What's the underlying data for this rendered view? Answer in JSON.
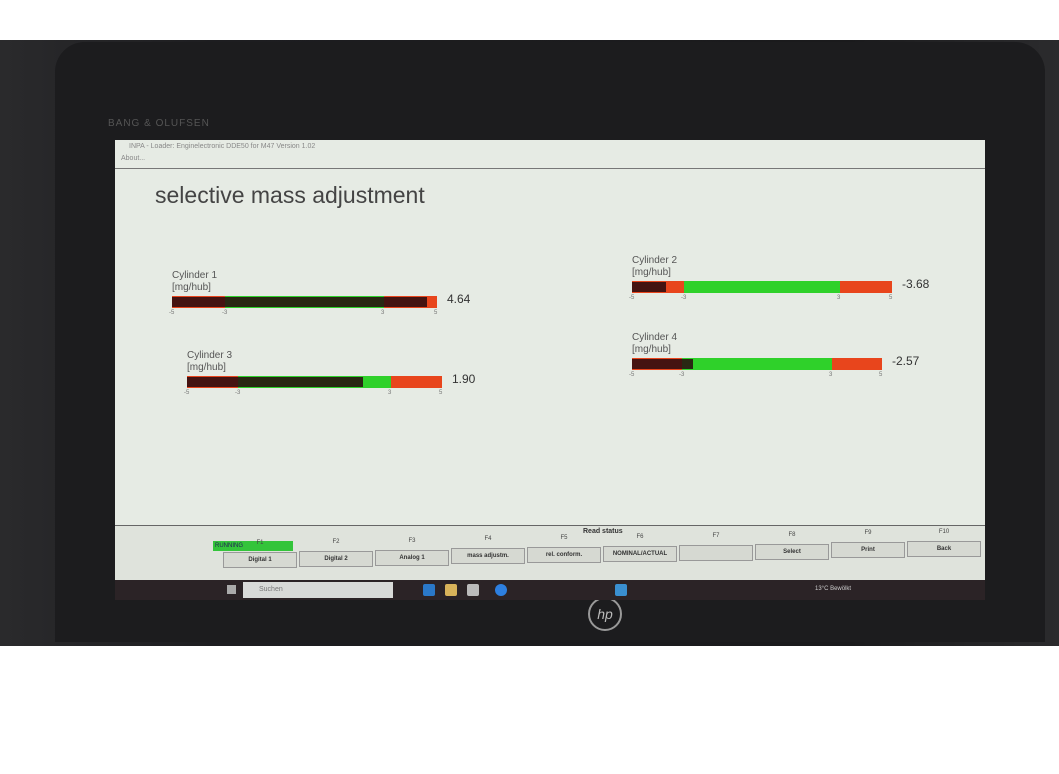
{
  "laptop": {
    "brand_text": "BANG & OLUFSEN",
    "logo": "hp"
  },
  "window": {
    "title": "INPA - Loader: Enginelectronic DDE50 for M47 Version 1.02",
    "menu_about": "About..."
  },
  "page": {
    "heading": "selective mass adjustment"
  },
  "gauge_scale": {
    "min": -5,
    "max": 5,
    "tolerance_min": -3,
    "tolerance_max": 3,
    "ticks": [
      "-5",
      "-3",
      "3",
      "5"
    ],
    "colors": {
      "ok": "#2fd12a",
      "out": "#e8451c",
      "fill": "#2a0a10"
    }
  },
  "cylinders": [
    {
      "name": "Cylinder 1",
      "unit": "[mg/hub]",
      "value": 4.64,
      "value_text": "4.64"
    },
    {
      "name": "Cylinder 2",
      "unit": "[mg/hub]",
      "value": -3.68,
      "value_text": "-3.68"
    },
    {
      "name": "Cylinder 3",
      "unit": "[mg/hub]",
      "value": 1.9,
      "value_text": "1.90"
    },
    {
      "name": "Cylinder 4",
      "unit": "[mg/hub]",
      "value": -2.57,
      "value_text": "-2.57"
    }
  ],
  "function_bar": {
    "status": "RUNNING",
    "read_status": "Read status",
    "keys": [
      {
        "key": "F1",
        "label": "Digital 1"
      },
      {
        "key": "F2",
        "label": "Digital 2"
      },
      {
        "key": "F3",
        "label": "Analog 1"
      },
      {
        "key": "F4",
        "label": "mass adjustm."
      },
      {
        "key": "F5",
        "label": "rel. conform."
      },
      {
        "key": "F6",
        "label": "NOMINAL/ACTUAL"
      },
      {
        "key": "F7",
        "label": ""
      },
      {
        "key": "F8",
        "label": "Select"
      },
      {
        "key": "F9",
        "label": "Print"
      },
      {
        "key": "F10",
        "label": "Back"
      }
    ]
  },
  "taskbar": {
    "search_placeholder": "Suchen",
    "weather": "13°C Bewölkt"
  }
}
